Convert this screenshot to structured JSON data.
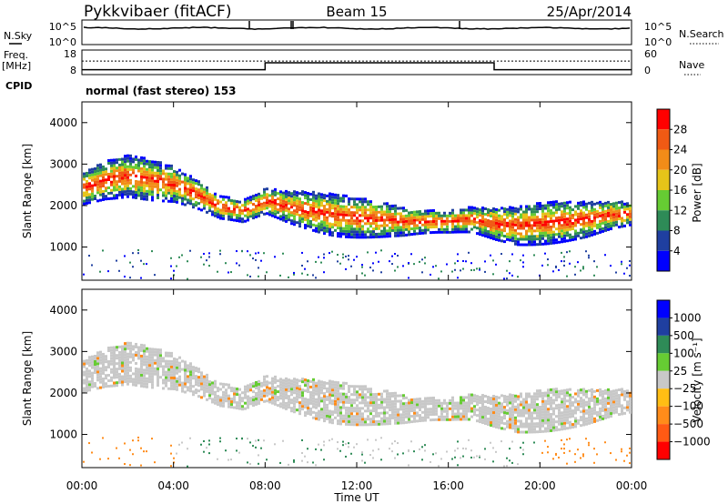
{
  "header": {
    "title": "Pykkvibaer (fitACF)",
    "beam": "Beam 15",
    "date": "25/Apr/2014"
  },
  "nsky_panel": {
    "left_label": "N.Sky",
    "left_ticks": [
      "10^5",
      "10^0"
    ],
    "right_label": "N.Search",
    "right_ticks": [
      "10^5",
      "10^0"
    ]
  },
  "freq_panel": {
    "left_label_1": "Freq.",
    "left_label_2": "[MHz]",
    "left_ticks": [
      "18",
      "8"
    ],
    "right_label": "Nave",
    "right_ticks": [
      "60",
      "0"
    ]
  },
  "cpid": {
    "label": "CPID",
    "text": "normal (fast stereo) 153"
  },
  "colors": {
    "power_scale": [
      "#0000ff",
      "#1f3fa0",
      "#2e8b57",
      "#66cc33",
      "#e6c419",
      "#f28c18",
      "#f05a14",
      "#ff0000"
    ],
    "velocity_scale": [
      "#ff0000",
      "#ff5a14",
      "#ff8c1a",
      "#ffbe14",
      "#c8c8c8",
      "#66cc33",
      "#2e8b57",
      "#1f3fa0",
      "#0000ff"
    ]
  },
  "chart_data": [
    {
      "type": "heatmap",
      "panel": "power",
      "ylabel": "Slant Range [km]",
      "ylim": [
        200,
        4500
      ],
      "y_ticks": [
        1000,
        2000,
        3000,
        4000
      ],
      "x_ticks": [
        "00:00",
        "04:00",
        "08:00",
        "12:00",
        "16:00",
        "20:00",
        "00:00"
      ],
      "xlim_hours": [
        0,
        24
      ],
      "colorbar": {
        "label": "Power [dB]",
        "ticks": [
          "4",
          "8",
          "12",
          "16",
          "20",
          "24",
          "28"
        ],
        "range": [
          0,
          32
        ]
      },
      "main_band_center_km": [
        [
          0,
          2450
        ],
        [
          1,
          2650
        ],
        [
          2,
          2750
        ],
        [
          3,
          2650
        ],
        [
          4,
          2550
        ],
        [
          5,
          2300
        ],
        [
          6,
          2000
        ],
        [
          7,
          1900
        ],
        [
          8,
          2150
        ],
        [
          9,
          2000
        ],
        [
          10,
          1900
        ],
        [
          11,
          1800
        ],
        [
          12,
          1750
        ],
        [
          13,
          1700
        ],
        [
          14,
          1650
        ],
        [
          15,
          1650
        ],
        [
          16,
          1650
        ],
        [
          17,
          1700
        ],
        [
          18,
          1600
        ],
        [
          19,
          1550
        ],
        [
          20,
          1600
        ],
        [
          21,
          1650
        ],
        [
          22,
          1700
        ],
        [
          23,
          1800
        ],
        [
          24,
          1850
        ]
      ]
    },
    {
      "type": "heatmap",
      "panel": "velocity",
      "ylabel": "Slant Range [km]",
      "xlabel": "Time UT",
      "ylim": [
        200,
        4500
      ],
      "y_ticks": [
        1000,
        2000,
        3000,
        4000
      ],
      "x_ticks": [
        "00:00",
        "04:00",
        "08:00",
        "12:00",
        "16:00",
        "20:00",
        "00:00"
      ],
      "xlim_hours": [
        0,
        24
      ],
      "colorbar": {
        "label": "Velocity [m s⁻¹]",
        "ticks": [
          "1000",
          "500",
          "100",
          "25",
          "−25",
          "−100",
          "−500",
          "−1000"
        ]
      }
    }
  ]
}
